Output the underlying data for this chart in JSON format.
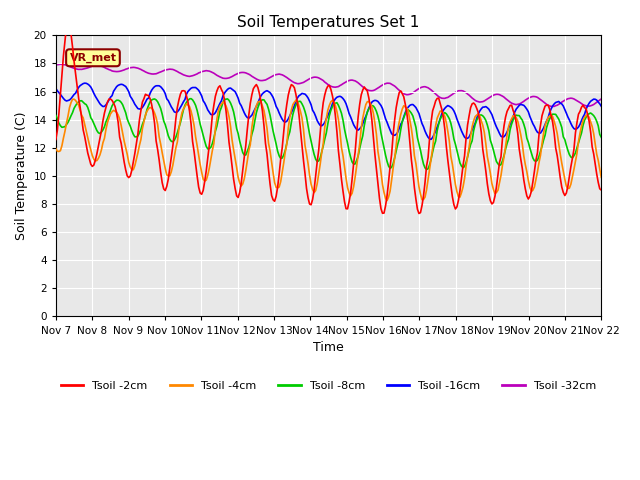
{
  "title": "Soil Temperatures Set 1",
  "xlabel": "Time",
  "ylabel": "Soil Temperature (C)",
  "ylim": [
    0,
    20
  ],
  "yticks": [
    0,
    2,
    4,
    6,
    8,
    10,
    12,
    14,
    16,
    18,
    20
  ],
  "bg_color": "#e8e8e8",
  "fig_color": "#ffffff",
  "annotation_text": "VR_met",
  "x_tick_labels": [
    "Nov 7",
    "Nov 8",
    "Nov 9",
    "Nov 10",
    "Nov 11",
    "Nov 12",
    "Nov 13",
    "Nov 14",
    "Nov 15",
    "Nov 16",
    "Nov 17",
    "Nov 18",
    "Nov 19",
    "Nov 20",
    "Nov 21",
    "Nov 22"
  ],
  "line_colors": {
    "2cm": "#ff0000",
    "4cm": "#ff8800",
    "8cm": "#00cc00",
    "16cm": "#0000ff",
    "32cm": "#bb00bb"
  },
  "legend_labels": [
    "Tsoil -2cm",
    "Tsoil -4cm",
    "Tsoil -8cm",
    "Tsoil -16cm",
    "Tsoil -32cm"
  ],
  "line_width": 1.2
}
